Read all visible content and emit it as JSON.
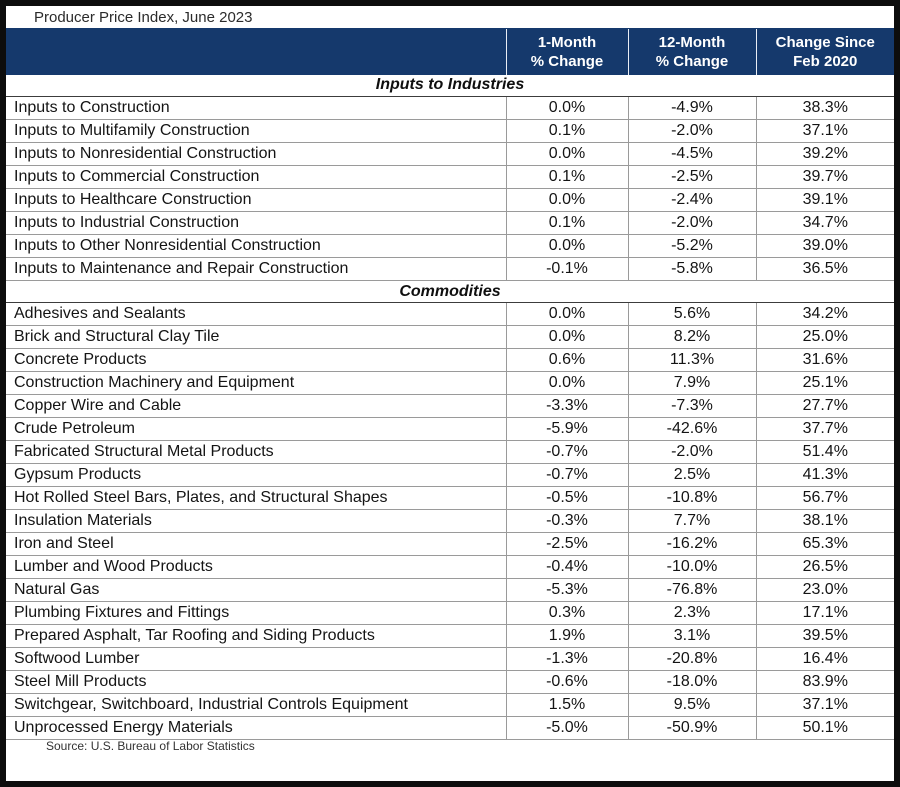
{
  "colors": {
    "header_bg": "#15396C",
    "header_text": "#FFFFFF",
    "grid_line": "#9A9A9A",
    "section_border": "#3C3C3C",
    "frame_border": "#0D0D0D",
    "body_text": "#141414"
  },
  "chart_data": {
    "type": "table",
    "title": "Producer Price Index, June 2023",
    "source": "Source: U.S. Bureau of Labor Statistics",
    "columns": [
      "",
      "1-Month\n% Change",
      "12-Month\n% Change",
      "Change Since\nFeb 2020"
    ],
    "sections": [
      {
        "label": "Inputs to Industries",
        "rows": [
          {
            "label": "Inputs to Construction",
            "values": [
              "0.0%",
              "-4.9%",
              "38.3%"
            ]
          },
          {
            "label": "Inputs to Multifamily Construction",
            "values": [
              "0.1%",
              "-2.0%",
              "37.1%"
            ]
          },
          {
            "label": "Inputs to Nonresidential Construction",
            "values": [
              "0.0%",
              "-4.5%",
              "39.2%"
            ]
          },
          {
            "label": "Inputs to Commercial Construction",
            "values": [
              "0.1%",
              "-2.5%",
              "39.7%"
            ]
          },
          {
            "label": "Inputs to Healthcare Construction",
            "values": [
              "0.0%",
              "-2.4%",
              "39.1%"
            ]
          },
          {
            "label": "Inputs to Industrial Construction",
            "values": [
              "0.1%",
              "-2.0%",
              "34.7%"
            ]
          },
          {
            "label": "Inputs to Other Nonresidential Construction",
            "values": [
              "0.0%",
              "-5.2%",
              "39.0%"
            ]
          },
          {
            "label": "Inputs to Maintenance and Repair Construction",
            "values": [
              "-0.1%",
              "-5.8%",
              "36.5%"
            ]
          }
        ]
      },
      {
        "label": "Commodities",
        "rows": [
          {
            "label": "Adhesives and Sealants",
            "values": [
              "0.0%",
              "5.6%",
              "34.2%"
            ]
          },
          {
            "label": "Brick and Structural Clay Tile",
            "values": [
              "0.0%",
              "8.2%",
              "25.0%"
            ]
          },
          {
            "label": "Concrete Products",
            "values": [
              "0.6%",
              "11.3%",
              "31.6%"
            ]
          },
          {
            "label": "Construction Machinery and Equipment",
            "values": [
              "0.0%",
              "7.9%",
              "25.1%"
            ]
          },
          {
            "label": "Copper Wire and Cable",
            "values": [
              "-3.3%",
              "-7.3%",
              "27.7%"
            ]
          },
          {
            "label": "Crude Petroleum",
            "values": [
              "-5.9%",
              "-42.6%",
              "37.7%"
            ]
          },
          {
            "label": "Fabricated Structural Metal Products",
            "values": [
              "-0.7%",
              "-2.0%",
              "51.4%"
            ]
          },
          {
            "label": "Gypsum Products",
            "values": [
              "-0.7%",
              "2.5%",
              "41.3%"
            ]
          },
          {
            "label": "Hot Rolled Steel Bars, Plates, and Structural Shapes",
            "values": [
              "-0.5%",
              "-10.8%",
              "56.7%"
            ]
          },
          {
            "label": "Insulation Materials",
            "values": [
              "-0.3%",
              "7.7%",
              "38.1%"
            ]
          },
          {
            "label": "Iron and Steel",
            "values": [
              "-2.5%",
              "-16.2%",
              "65.3%"
            ]
          },
          {
            "label": "Lumber and Wood Products",
            "values": [
              "-0.4%",
              "-10.0%",
              "26.5%"
            ]
          },
          {
            "label": "Natural Gas",
            "values": [
              "-5.3%",
              "-76.8%",
              "23.0%"
            ]
          },
          {
            "label": "Plumbing Fixtures and Fittings",
            "values": [
              "0.3%",
              "2.3%",
              "17.1%"
            ]
          },
          {
            "label": "Prepared Asphalt, Tar Roofing and Siding Products",
            "values": [
              "1.9%",
              "3.1%",
              "39.5%"
            ]
          },
          {
            "label": "Softwood Lumber",
            "values": [
              "-1.3%",
              "-20.8%",
              "16.4%"
            ]
          },
          {
            "label": "Steel Mill Products",
            "values": [
              "-0.6%",
              "-18.0%",
              "83.9%"
            ]
          },
          {
            "label": "Switchgear, Switchboard, Industrial Controls Equipment",
            "values": [
              "1.5%",
              "9.5%",
              "37.1%"
            ]
          },
          {
            "label": "Unprocessed Energy Materials",
            "values": [
              "-5.0%",
              "-50.9%",
              "50.1%"
            ]
          }
        ]
      }
    ]
  }
}
